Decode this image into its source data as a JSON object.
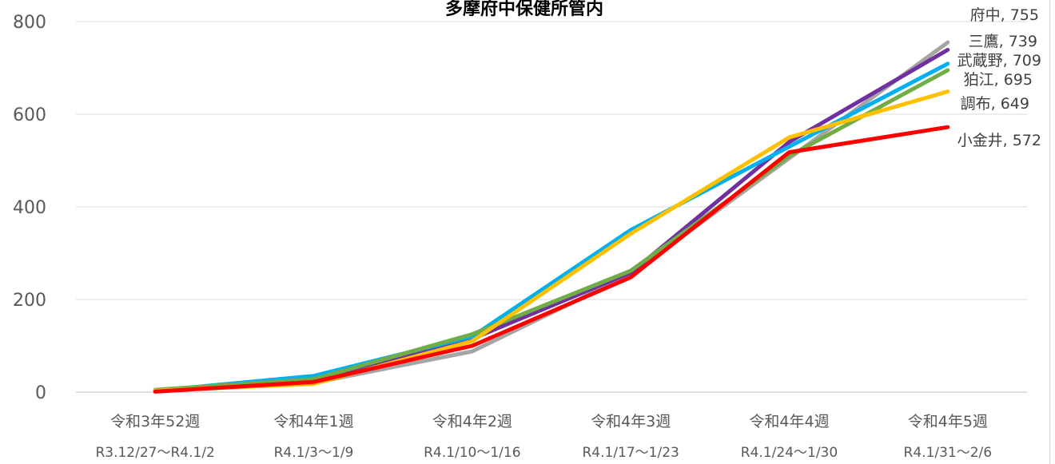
{
  "chart_data": {
    "type": "line",
    "title": "多摩府中保健所管内",
    "categories": [
      "令和3年52週",
      "令和4年1週",
      "令和4年2週",
      "令和4年3週",
      "令和4年4週",
      "令和4年5週"
    ],
    "category_dates": [
      "R3.12/27～R4.1/2",
      "R4.1/3～1/9",
      "R4.1/10～1/16",
      "R4.1/17～1/23",
      "R4.1/24～1/30",
      "R4.1/31～2/6"
    ],
    "ylim": [
      0,
      800
    ],
    "yticks": [
      0,
      200,
      400,
      600,
      800
    ],
    "grid": true,
    "series": [
      {
        "name": "府中",
        "color": "#A5A5A5",
        "values": [
          3,
          20,
          88,
          255,
          505,
          755
        ]
      },
      {
        "name": "三鷹",
        "color": "#7030A0",
        "values": [
          3,
          25,
          115,
          258,
          540,
          739
        ]
      },
      {
        "name": "武蔵野",
        "color": "#00B0F0",
        "values": [
          3,
          35,
          120,
          350,
          530,
          709
        ]
      },
      {
        "name": "狛江",
        "color": "#70AD47",
        "values": [
          5,
          28,
          125,
          262,
          510,
          695
        ]
      },
      {
        "name": "調布",
        "color": "#FFC000",
        "values": [
          3,
          18,
          110,
          342,
          550,
          649
        ]
      },
      {
        "name": "小金井",
        "color": "#FF0000",
        "values": [
          1,
          22,
          100,
          248,
          518,
          572
        ]
      }
    ],
    "end_labels": [
      "府中, 755",
      "三鷹, 739",
      "武蔵野, 709",
      "狛江, 695",
      "調布, 649",
      "小金井, 572"
    ]
  }
}
